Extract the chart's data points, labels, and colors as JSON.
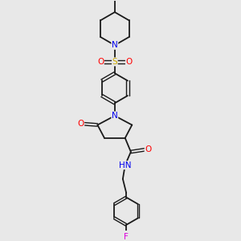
{
  "background_color": "#e8e8e8",
  "colors": {
    "C": "#1a1a1a",
    "N": "#0000ee",
    "O": "#ff0000",
    "S": "#ccaa00",
    "F": "#dd00dd",
    "bond": "#1a1a1a"
  },
  "figsize": [
    3.0,
    3.0
  ],
  "dpi": 100,
  "xlim": [
    0.2,
    0.85
  ],
  "ylim": [
    0.0,
    1.0
  ]
}
